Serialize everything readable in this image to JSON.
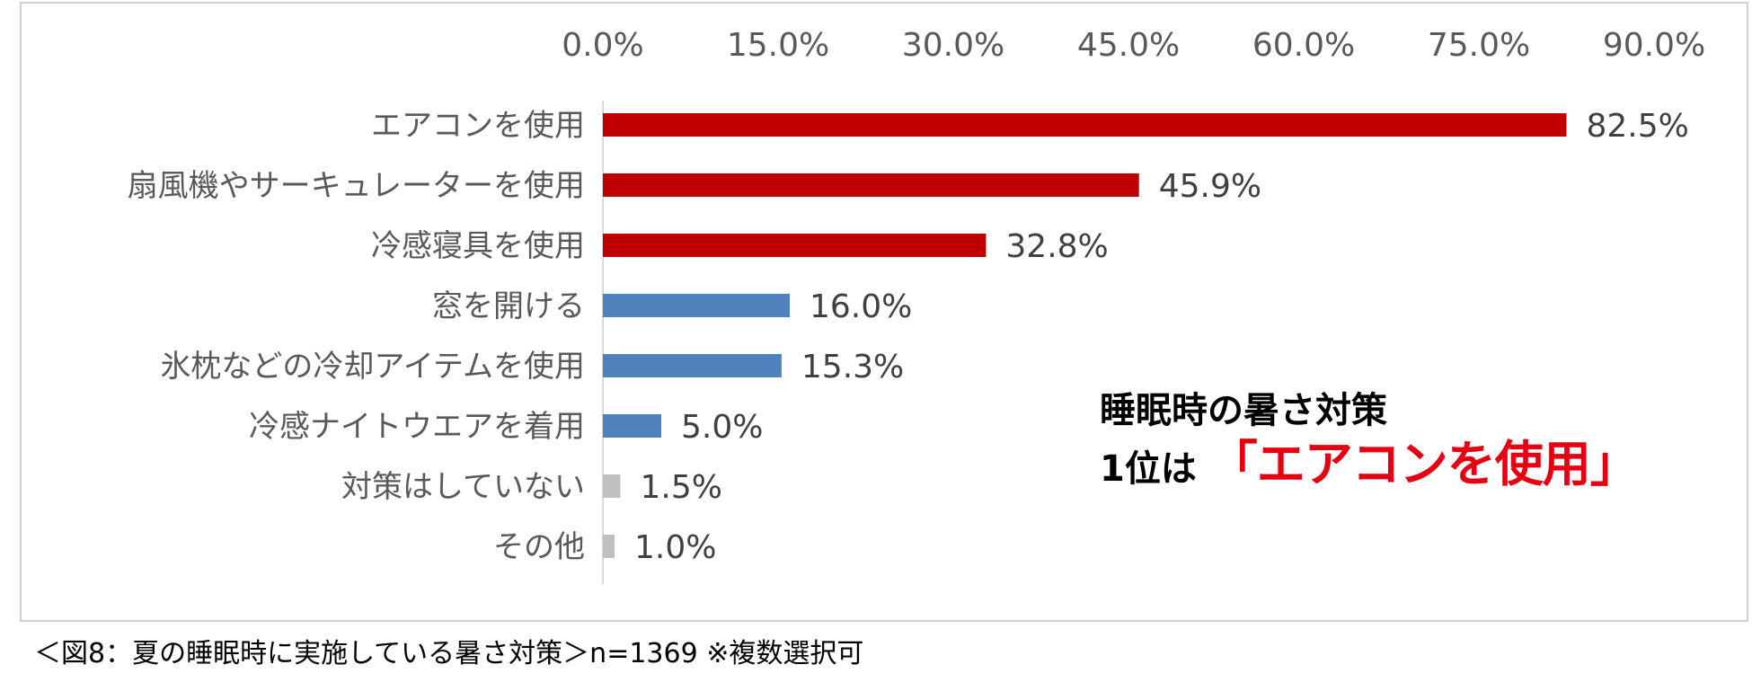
{
  "chart_data": {
    "type": "bar",
    "orientation": "horizontal",
    "categories": [
      "エアコンを使用",
      "扇風機やサーキュレーターを使用",
      "冷感寝具を使用",
      "窓を開ける",
      "氷枕などの冷却アイテムを使用",
      "冷感ナイトウエアを着用",
      "対策はしていない",
      "その他"
    ],
    "values": [
      82.5,
      45.9,
      32.8,
      16.0,
      15.3,
      5.0,
      1.5,
      1.0
    ],
    "data_labels": [
      "82.5%",
      "45.9%",
      "32.8%",
      "16.0%",
      "15.3%",
      "5.0%",
      "1.5%",
      "1.0%"
    ],
    "bar_colors": [
      "#c00000",
      "#c00000",
      "#c00000",
      "#4f81bd",
      "#4f81bd",
      "#4f81bd",
      "#bfbfbf",
      "#bfbfbf"
    ],
    "x_ticks": [
      "0.0%",
      "15.0%",
      "30.0%",
      "45.0%",
      "60.0%",
      "75.0%",
      "90.0%"
    ],
    "xlim": [
      0,
      90
    ],
    "x_axis_position": "top",
    "grid": false,
    "legend": "none"
  },
  "callout": {
    "line1": "睡眠時の暑さ対策",
    "line2_prefix": "1位は",
    "line2_highlight": "「エアコンを使用」",
    "highlight_color": "#e60012"
  },
  "caption": "＜図8：夏の睡眠時に実施している暑さ対策＞n=1369 ※複数選択可"
}
